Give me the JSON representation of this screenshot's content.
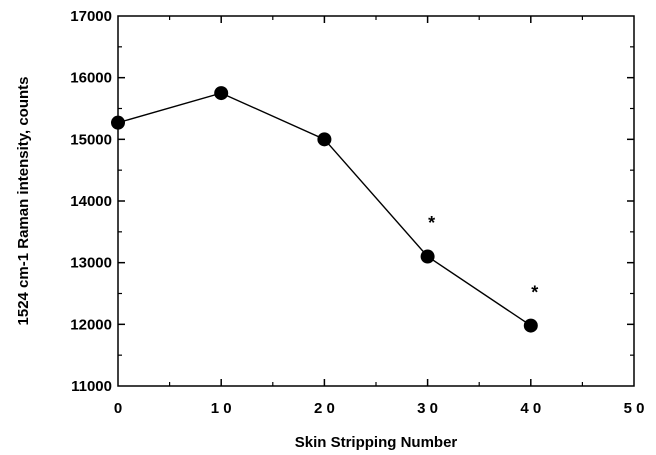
{
  "chart_data": {
    "type": "line",
    "title": "",
    "xlabel": "Skin Stripping Number",
    "ylabel": "1524 cm-1 Raman intensity, counts",
    "xlim": [
      0,
      50
    ],
    "ylim": [
      11000,
      17000
    ],
    "x_ticks": [
      0,
      10,
      20,
      30,
      40,
      50
    ],
    "y_ticks": [
      11000,
      12000,
      13000,
      14000,
      15000,
      16000,
      17000
    ],
    "x_tick_labels": [
      "0",
      "1 0",
      "2 0",
      "3 0",
      "4 0",
      "5 0"
    ],
    "y_tick_labels": [
      "11000",
      "12000",
      "13000",
      "14000",
      "15000",
      "16000",
      "17000"
    ],
    "grid": false,
    "series": [
      {
        "x": [
          0,
          10,
          20,
          30,
          40
        ],
        "y": [
          15270,
          15750,
          15000,
          13100,
          11980
        ],
        "color": "#000000",
        "marker": "circle"
      }
    ],
    "annotations": [
      {
        "text": "*",
        "x": 30,
        "y": 13550
      },
      {
        "text": "*",
        "x": 40,
        "y": 12420
      }
    ]
  }
}
